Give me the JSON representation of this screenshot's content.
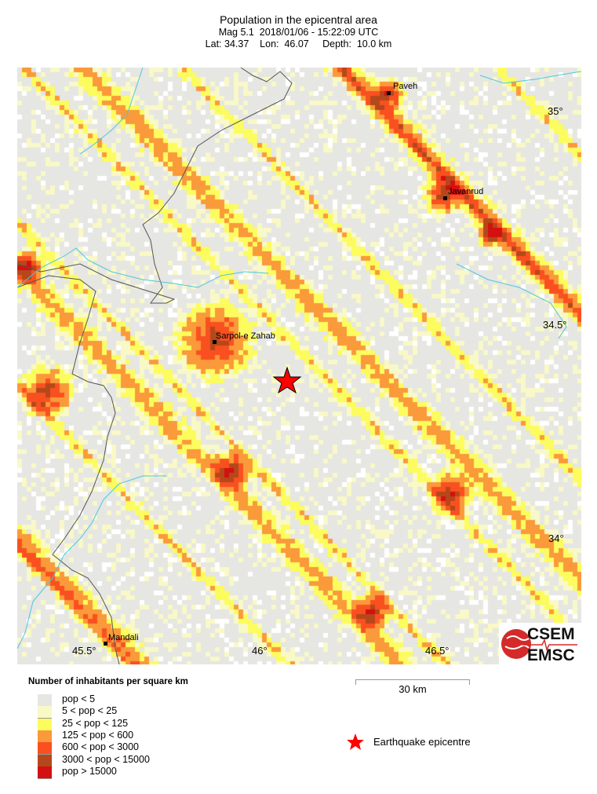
{
  "header": {
    "title": "Population in the epicentral area",
    "line1": "Mag 5.1  2018/01/06 - 15:22:09 UTC",
    "line2": "Lat: 34.37    Lon:  46.07     Depth:  10.0 km"
  },
  "map": {
    "cities": [
      {
        "name": "Paveh"
      },
      {
        "name": "Javanrud"
      },
      {
        "name": "Sarpol-e Zahab"
      },
      {
        "name": "Mandali"
      }
    ],
    "lat_labels": [
      "35°",
      "34.5°",
      "34°"
    ],
    "lon_labels": [
      "45.5°",
      "46°",
      "46.5°"
    ],
    "epicentre": {
      "lat": 34.37,
      "lon": 46.07,
      "color": "#ff0000"
    },
    "logo": {
      "top": "CSEM",
      "bottom": "EMSC",
      "color": "#d42a2a"
    }
  },
  "legend": {
    "title": "Number of inhabitants per square km",
    "items": [
      {
        "label": "pop < 5",
        "color": "#e6e6e3"
      },
      {
        "label": "5 < pop < 25",
        "color": "#f9f9c8"
      },
      {
        "label": "25 < pop < 125",
        "color": "#fcfc5e"
      },
      {
        "label": "125 < pop < 600",
        "color": "#fa9a3a"
      },
      {
        "label": "600 < pop < 3000",
        "color": "#fa5020"
      },
      {
        "label": "3000 < pop < 15000",
        "color": "#b5481a"
      },
      {
        "label": "pop > 15000",
        "color": "#d41010"
      }
    ],
    "scale_label": "30 km",
    "epicentre_label": "Earthquake epicentre"
  }
}
